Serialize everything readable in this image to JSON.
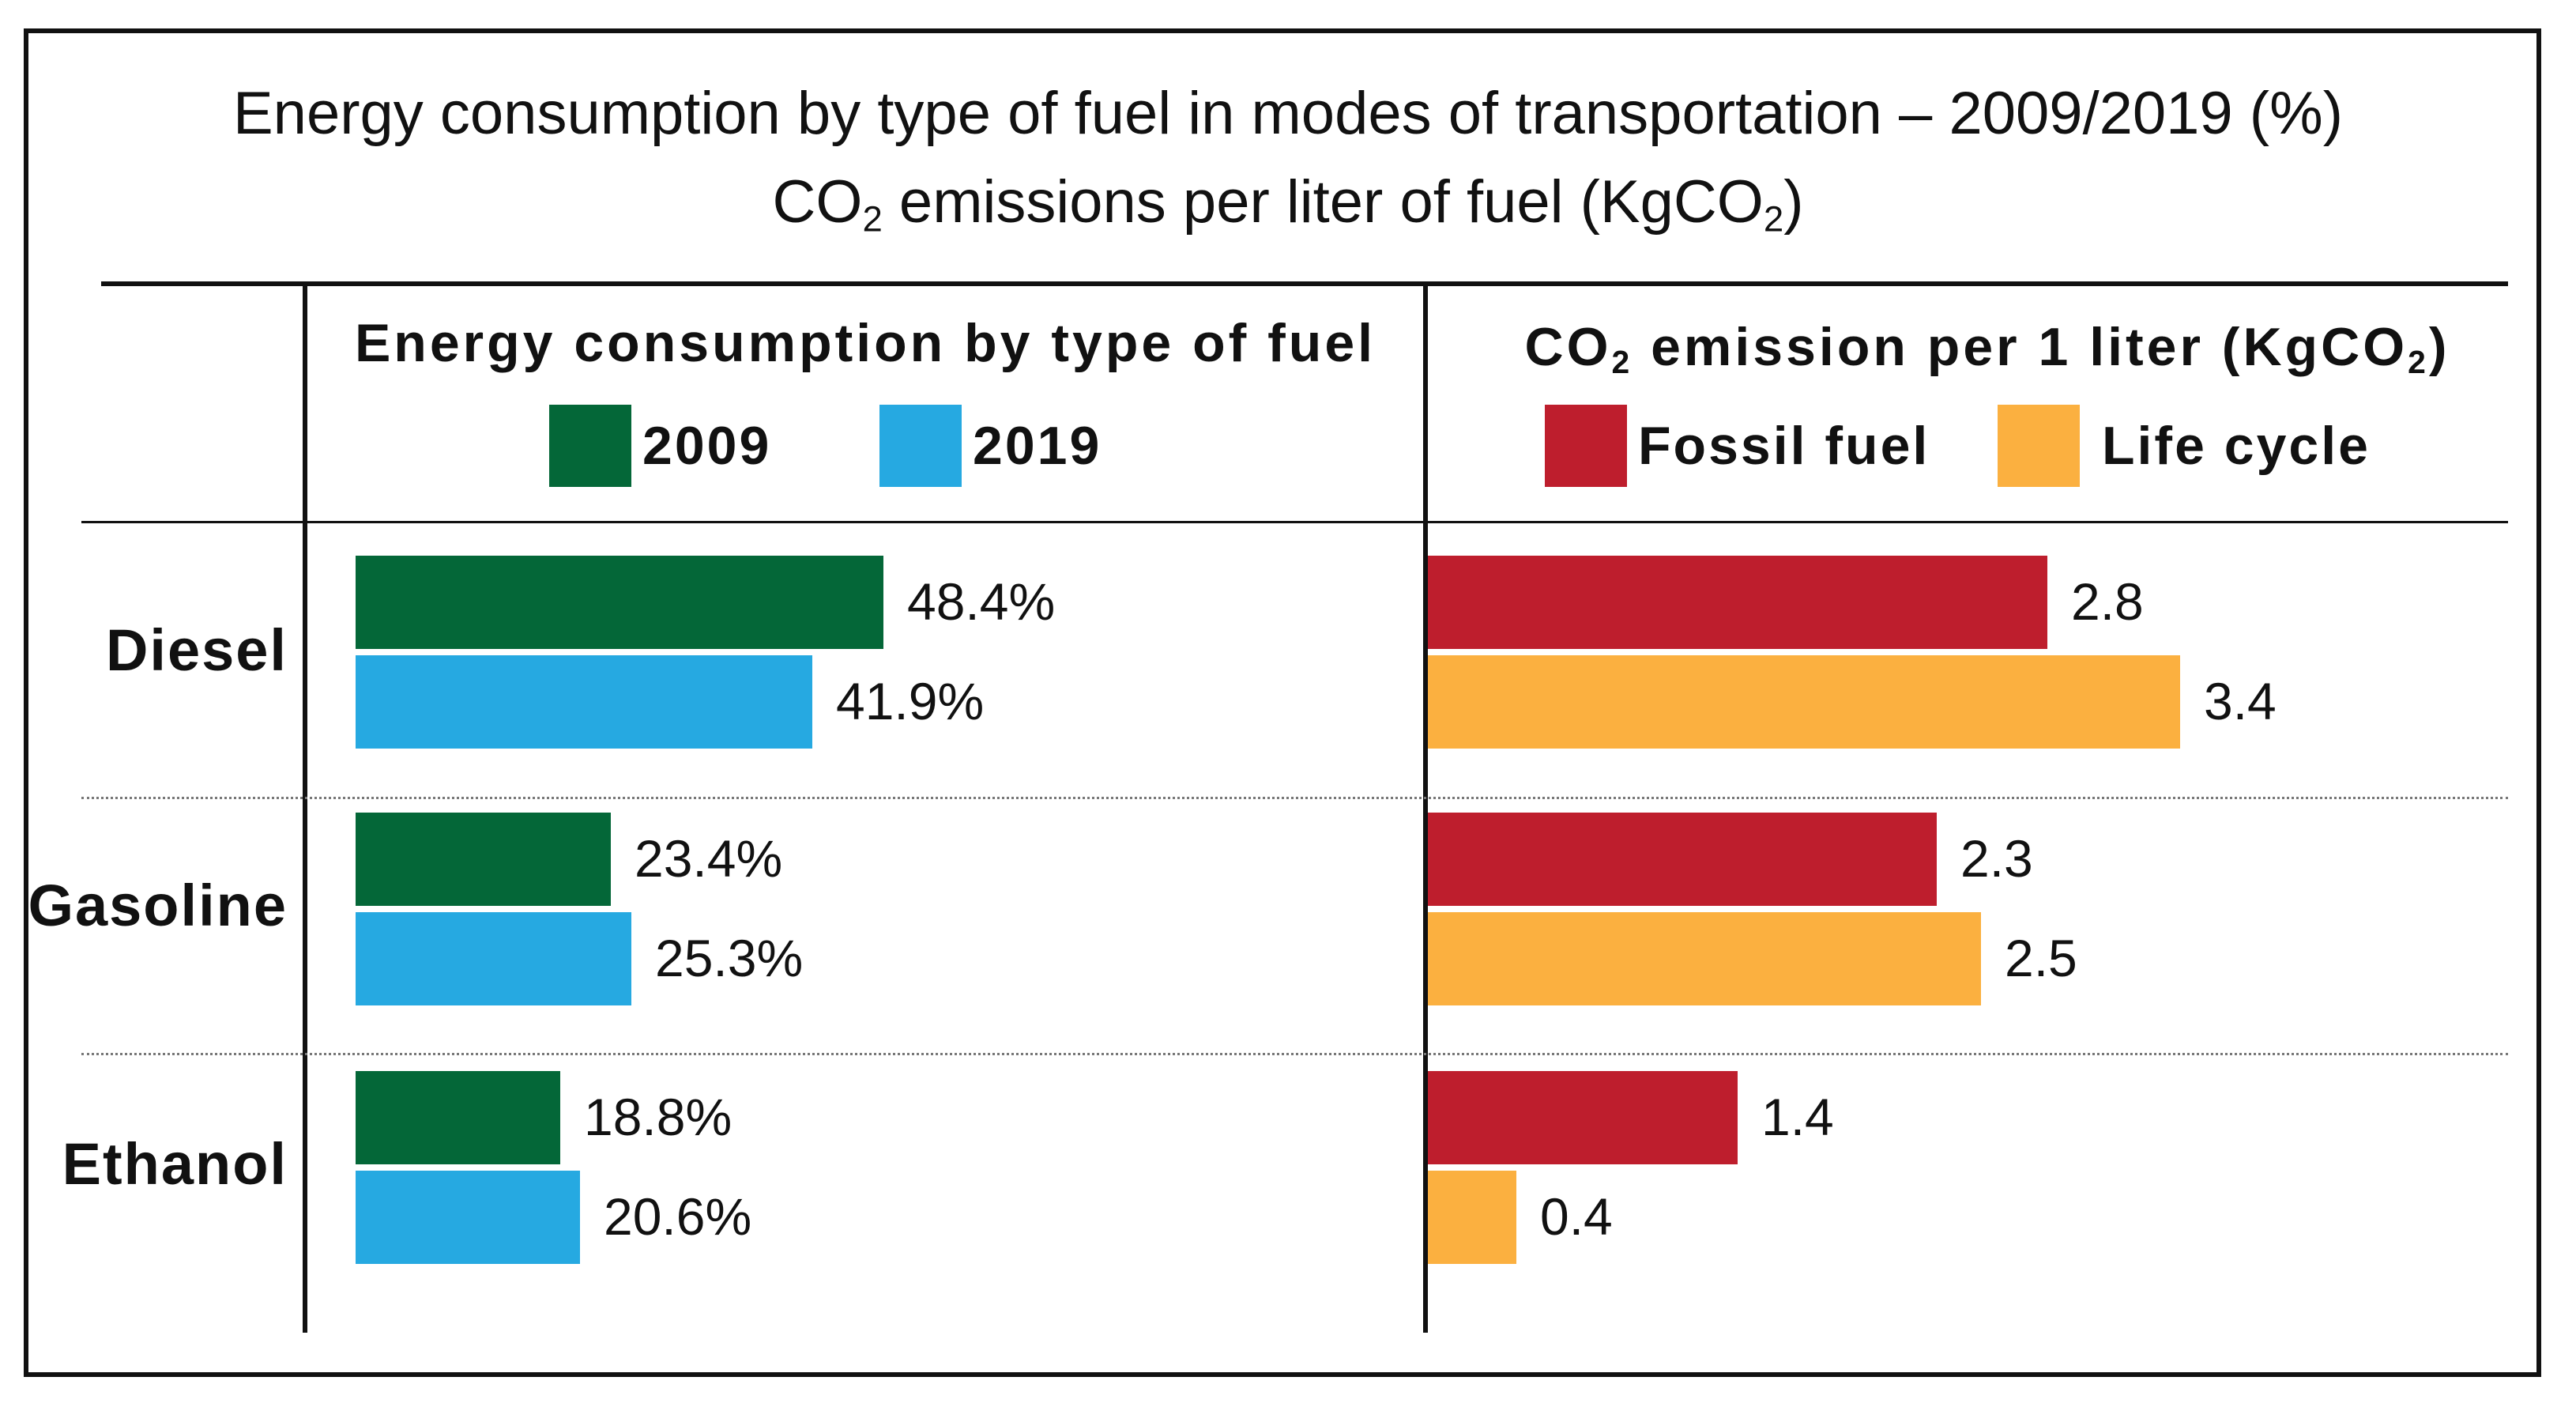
{
  "title": {
    "line1": "Energy consumption by type of fuel in modes of transportation – 2009/2019 (%)",
    "line2_before": "CO",
    "line2_sub": "2",
    "line2_middle": " emissions per liter of fuel (KgCO",
    "line2_sub2": "2",
    "line2_after": ")"
  },
  "chart_data": [
    {
      "type": "bar",
      "orientation": "horizontal",
      "title": "Energy consumption by type of fuel",
      "categories": [
        "Diesel",
        "Gasoline",
        "Ethanol"
      ],
      "series": [
        {
          "name": "2009",
          "color": "#046738",
          "values": [
            48.4,
            23.4,
            18.8
          ],
          "labels": [
            "48.4%",
            "23.4%",
            "18.8%"
          ]
        },
        {
          "name": "2019",
          "color": "#26a9e1",
          "values": [
            41.9,
            25.3,
            20.6
          ],
          "labels": [
            "41.9%",
            "25.3%",
            "20.6%"
          ]
        }
      ],
      "unit": "%",
      "xlim": [
        0,
        100
      ]
    },
    {
      "type": "bar",
      "orientation": "horizontal",
      "title_before": "CO",
      "title_sub": "2",
      "title_middle": " emission per 1 liter (KgCO",
      "title_sub2": "2",
      "title_after": ")",
      "categories": [
        "Diesel",
        "Gasoline",
        "Ethanol"
      ],
      "series": [
        {
          "name": "Fossil fuel",
          "color": "#be1e2d",
          "values": [
            2.8,
            2.3,
            1.4
          ],
          "labels": [
            "2.8",
            "2.3",
            "1.4"
          ]
        },
        {
          "name": "Life cycle",
          "color": "#fbb040",
          "values": [
            3.4,
            2.5,
            0.4
          ],
          "labels": [
            "3.4",
            "2.5",
            "0.4"
          ]
        }
      ],
      "unit": "KgCO2",
      "xlim": [
        0,
        4.93
      ]
    }
  ]
}
